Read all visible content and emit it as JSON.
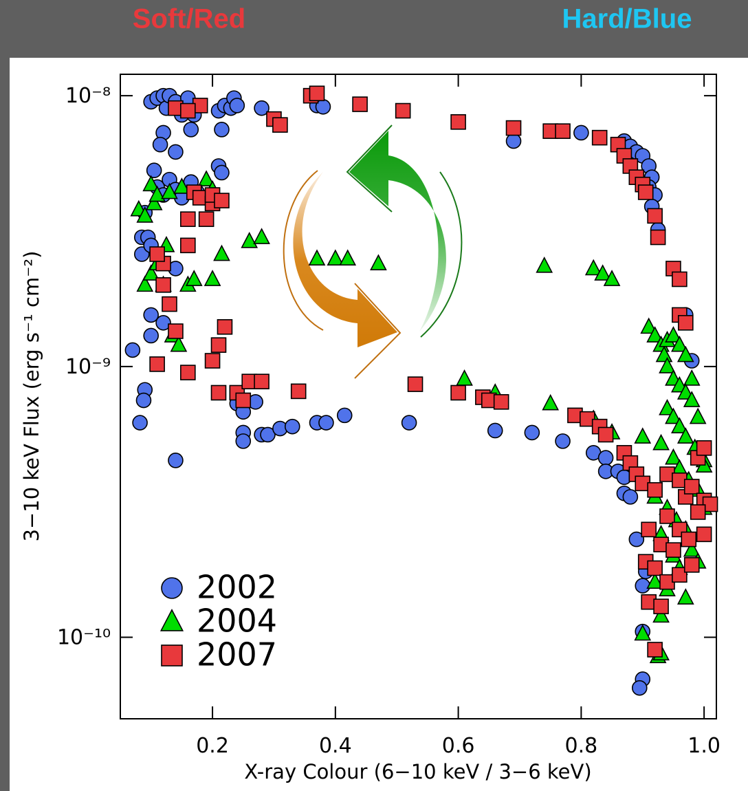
{
  "chart_data": {
    "type": "scatter",
    "annotations": [
      {
        "text": "Soft/Red",
        "color": "#e8393c"
      },
      {
        "text": "Hard/Blue",
        "color": "#1ec6f2"
      }
    ],
    "x_label": "X-ray Colour (6−10 keV / 3−6 keV)",
    "y_label": "3−10 keV Flux (erg s⁻¹ cm⁻²)",
    "xlim": [
      0.05,
      1.02
    ],
    "ylim": [
      5e-11,
      1.2e-08
    ],
    "yscale": "log",
    "xticks": [
      0.2,
      0.4,
      0.6,
      0.8,
      {
        "value": 1,
        "label": "1.0"
      }
    ],
    "yticks": [
      {
        "value": 1e-10,
        "label": "10⁻¹⁰"
      },
      {
        "value": 1e-09,
        "label": "10⁻⁹"
      },
      {
        "value": 1e-08,
        "label": "10⁻⁸"
      }
    ],
    "legend": "lower left",
    "series": [
      {
        "name": "2002",
        "color": "#5073ea",
        "marker": "circle",
        "x": [
          0.1,
          0.11,
          0.12,
          0.125,
          0.13,
          0.14,
          0.15,
          0.16,
          0.165,
          0.17,
          0.12,
          0.115,
          0.14,
          0.21,
          0.215,
          0.21,
          0.22,
          0.23,
          0.235,
          0.24,
          0.215,
          0.28,
          0.37,
          0.38,
          0.105,
          0.11,
          0.12,
          0.13,
          0.14,
          0.15,
          0.165,
          0.175,
          0.09,
          0.085,
          0.095,
          0.085,
          0.1,
          0.14,
          0.1,
          0.1,
          0.12,
          0.07,
          0.09,
          0.088,
          0.082,
          0.14,
          0.24,
          0.25,
          0.27,
          0.25,
          0.25,
          0.28,
          0.29,
          0.31,
          0.33,
          0.37,
          0.385,
          0.415,
          0.52,
          0.66,
          0.72,
          0.77,
          0.82,
          0.84,
          0.84,
          0.86,
          0.87,
          0.87,
          0.88,
          0.69,
          0.8,
          0.87,
          0.88,
          0.89,
          0.9,
          0.91,
          0.915,
          0.91,
          0.92,
          0.915,
          0.925,
          0.97,
          0.98,
          0.89,
          0.9,
          0.905,
          0.9,
          0.9,
          0.895
        ],
        "values": [
          9.5e-09,
          9.8e-09,
          1e-08,
          9e-09,
          1e-08,
          9.5e-09,
          8.5e-09,
          9.8e-09,
          7.5e-09,
          8.5e-09,
          7.3e-09,
          6.6e-09,
          6.2e-09,
          5.5e-09,
          5.2e-09,
          8.8e-09,
          9.2e-09,
          9e-09,
          9.8e-09,
          9.2e-09,
          7.5e-09,
          9e-09,
          9.2e-09,
          9.1e-09,
          5.3e-09,
          4.6e-09,
          4.3e-09,
          4.9e-09,
          4.5e-09,
          4.2e-09,
          4.8e-09,
          4.4e-09,
          3.7e-09,
          3e-09,
          3e-09,
          2.6e-09,
          2.8e-09,
          2.3e-09,
          1.55e-09,
          1.3e-09,
          1.45e-09,
          1.15e-09,
          8.2e-10,
          7.5e-10,
          6.2e-10,
          4.5e-10,
          7.3e-10,
          6.8e-10,
          7.4e-10,
          5.7e-10,
          5.3e-10,
          5.6e-10,
          5.6e-10,
          5.9e-10,
          6e-10,
          6.2e-10,
          6.2e-10,
          6.6e-10,
          6.2e-10,
          5.8e-10,
          5.7e-10,
          5.3e-10,
          4.8e-10,
          4.6e-10,
          4.1e-10,
          4.1e-10,
          3.9e-10,
          3.4e-10,
          3.3e-10,
          6.8e-09,
          7.3e-09,
          6.8e-09,
          6.5e-09,
          6.2e-09,
          6e-09,
          5.5e-09,
          5e-09,
          4.6e-09,
          4.3e-09,
          3.9e-09,
          3.2e-09,
          1.55e-09,
          1.05e-09,
          2.3e-10,
          1.55e-10,
          1.75e-10,
          1.05e-10,
          7e-11,
          6.5e-11
        ]
      },
      {
        "name": "2004",
        "color": "#00dd00",
        "marker": "triangle",
        "x": [
          0.08,
          0.09,
          0.1,
          0.105,
          0.11,
          0.13,
          0.15,
          0.19,
          0.2,
          0.09,
          0.1,
          0.11,
          0.12,
          0.125,
          0.16,
          0.17,
          0.2,
          0.215,
          0.135,
          0.145,
          0.26,
          0.28,
          0.37,
          0.4,
          0.42,
          0.47,
          0.74,
          0.82,
          0.835,
          0.85,
          0.61,
          0.66,
          0.75,
          0.82,
          0.85,
          0.9,
          0.91,
          0.92,
          0.93,
          0.935,
          0.94,
          0.95,
          0.96,
          0.97,
          0.98,
          0.94,
          0.95,
          0.96,
          0.97,
          0.98,
          0.99,
          0.94,
          0.95,
          0.96,
          0.97,
          0.985,
          1.0,
          0.93,
          0.95,
          0.96,
          0.975,
          0.99,
          0.92,
          0.94,
          0.955,
          0.97,
          0.98,
          0.93,
          0.95,
          0.96,
          0.92,
          0.94,
          0.97,
          0.93,
          0.9,
          0.925,
          0.93,
          1.0,
          1.0,
          0.99
        ],
        "values": [
          3.8e-09,
          3.6e-09,
          4.7e-09,
          4e-09,
          4.3e-09,
          4.4e-09,
          4.6e-09,
          4.9e-09,
          4.5e-09,
          2e-09,
          2.2e-09,
          2.4e-09,
          2e-09,
          2.8e-09,
          2e-09,
          2.1e-09,
          2.1e-09,
          2.6e-09,
          1.3e-09,
          1.2e-09,
          2.9e-09,
          3e-09,
          2.5e-09,
          2.5e-09,
          2.5e-09,
          2.4e-09,
          2.35e-09,
          2.3e-09,
          2.2e-09,
          2.1e-09,
          9e-10,
          8e-10,
          7.3e-10,
          6.4e-10,
          5.7e-10,
          5.5e-10,
          1.4e-09,
          1.3e-09,
          1.2e-09,
          1.1e-09,
          1.25e-09,
          1.3e-09,
          1.2e-09,
          1.1e-09,
          9e-10,
          1e-09,
          9e-10,
          8.5e-10,
          8e-10,
          7.5e-10,
          6.5e-10,
          7e-10,
          6.5e-10,
          6e-10,
          5.5e-10,
          5e-10,
          4.5e-10,
          5.2e-10,
          4.6e-10,
          4.2e-10,
          3.8e-10,
          3.5e-10,
          3.3e-10,
          3e-10,
          2.7e-10,
          2.5e-10,
          2.1e-10,
          2.4e-10,
          2e-10,
          1.8e-10,
          1.6e-10,
          1.5e-10,
          1.4e-10,
          1.2e-10,
          1.03e-10,
          8.5e-11,
          8.7e-11,
          4.3e-10,
          3e-10,
          1.9e-10
        ]
      },
      {
        "name": "2007",
        "color": "#e8393c",
        "marker": "square",
        "x": [
          0.18,
          0.14,
          0.16,
          0.3,
          0.31,
          0.36,
          0.37,
          0.44,
          0.51,
          0.6,
          0.69,
          0.75,
          0.77,
          0.83,
          0.86,
          0.87,
          0.88,
          0.89,
          0.9,
          0.905,
          0.92,
          0.925,
          0.95,
          0.96,
          0.96,
          0.97,
          0.17,
          0.18,
          0.2,
          0.2,
          0.215,
          0.16,
          0.19,
          0.16,
          0.12,
          0.11,
          0.12,
          0.13,
          0.14,
          0.2,
          0.21,
          0.22,
          0.11,
          0.16,
          0.21,
          0.24,
          0.25,
          0.26,
          0.28,
          0.34,
          0.53,
          0.6,
          0.64,
          0.65,
          0.67,
          0.79,
          0.81,
          0.83,
          0.84,
          0.87,
          0.88,
          0.89,
          0.9,
          0.92,
          0.94,
          0.96,
          0.97,
          0.98,
          1.0,
          1.01,
          0.99,
          0.94,
          0.96,
          0.975,
          1.0,
          0.91,
          0.93,
          0.95,
          0.905,
          0.92,
          0.94,
          0.96,
          0.98,
          0.91,
          0.93,
          0.92,
          0.99,
          1.0
        ],
        "values": [
          9.2e-09,
          9e-09,
          8.8e-09,
          8.2e-09,
          7.8e-09,
          1e-08,
          1.02e-08,
          9.3e-09,
          8.8e-09,
          8e-09,
          7.6e-09,
          7.4e-09,
          7.4e-09,
          7e-09,
          6.6e-09,
          6e-09,
          5.5e-09,
          5e-09,
          4.7e-09,
          4.4e-09,
          3.6e-09,
          3e-09,
          2.3e-09,
          2.1e-09,
          1.55e-09,
          1.45e-09,
          4.4e-09,
          4.2e-09,
          4e-09,
          4.3e-09,
          4.1e-09,
          3.5e-09,
          3.5e-09,
          2.8e-09,
          2.4e-09,
          2.6e-09,
          2e-09,
          1.7e-09,
          1.35e-09,
          1.05e-09,
          1.2e-09,
          1.4e-09,
          1.02e-09,
          9.5e-10,
          8e-10,
          8e-10,
          7.5e-10,
          8.8e-10,
          8.8e-10,
          8.1e-10,
          8.6e-10,
          8e-10,
          7.7e-10,
          7.5e-10,
          7.4e-10,
          6.6e-10,
          6.4e-10,
          6e-10,
          5.6e-10,
          4.8e-10,
          4.4e-10,
          4e-10,
          3.7e-10,
          3.5e-10,
          4e-10,
          3.8e-10,
          3.3e-10,
          3.6e-10,
          3.2e-10,
          3.1e-10,
          2.9e-10,
          2.8e-10,
          2.5e-10,
          2.3e-10,
          2.4e-10,
          2.5e-10,
          2.2e-10,
          2.1e-10,
          1.9e-10,
          1.8e-10,
          1.6e-10,
          1.7e-10,
          1.85e-10,
          1.35e-10,
          1.3e-10,
          9e-11,
          4.6e-10,
          5e-10
        ]
      }
    ]
  }
}
